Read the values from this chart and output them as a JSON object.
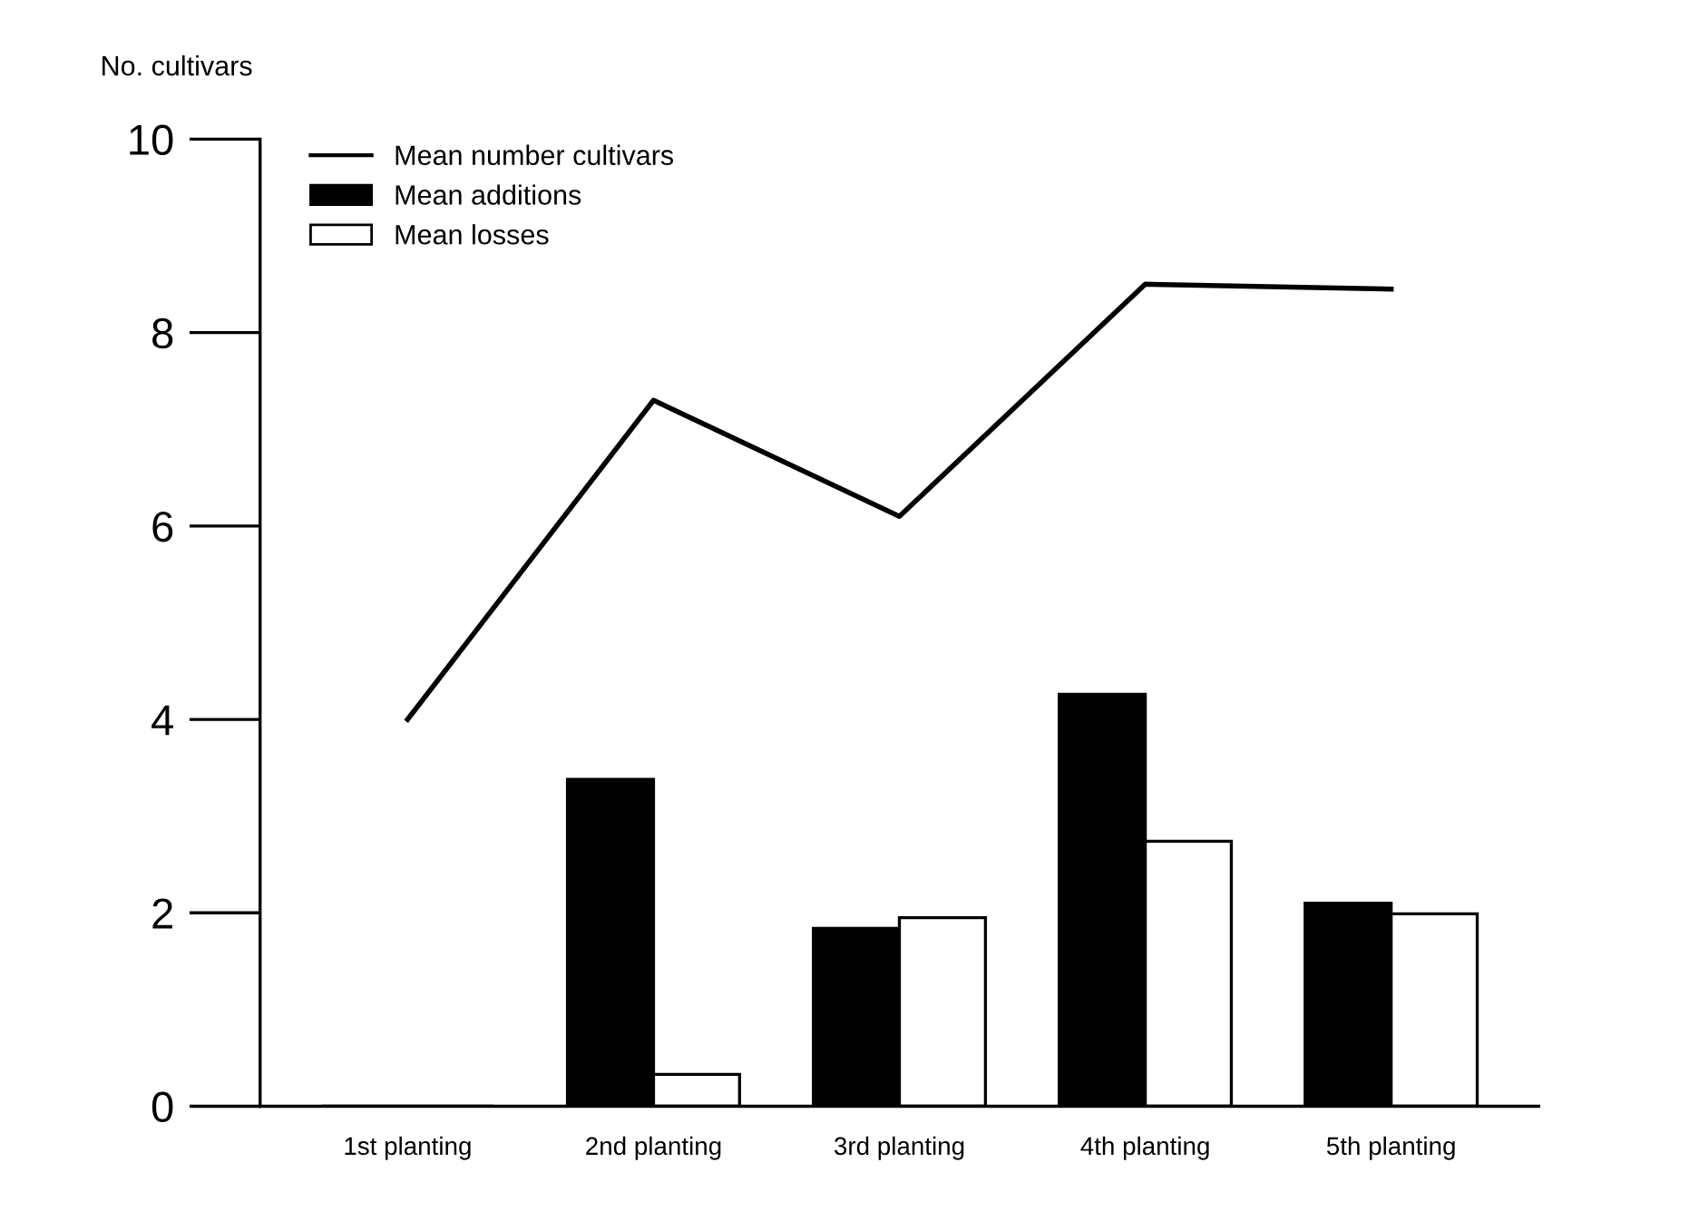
{
  "chart_data": {
    "type": "bar",
    "ylabel": "No. cultivars",
    "categories": [
      "1st planting",
      "2nd planting",
      "3rd planting",
      "4th planting",
      "5th planting"
    ],
    "series": [
      {
        "name": "Mean number cultivars",
        "type": "line",
        "color": "#000000",
        "values": [
          4.0,
          7.3,
          6.1,
          8.5,
          8.45
        ]
      },
      {
        "name": "Mean additions",
        "color": "#000000",
        "values": [
          0,
          3.38,
          1.84,
          4.26,
          2.1
        ]
      },
      {
        "name": "Mean losses",
        "color": "#ffffff",
        "values": [
          0,
          0.33,
          1.95,
          2.74,
          1.99
        ]
      }
    ],
    "ylim": [
      0,
      10
    ],
    "yticks": [
      0,
      2,
      4,
      6,
      8,
      10
    ],
    "legend": "top left",
    "grid": false,
    "marker": "none",
    "line_style": "solid"
  }
}
